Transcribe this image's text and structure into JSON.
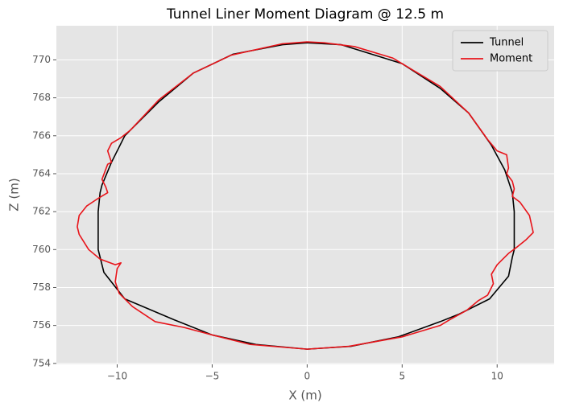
{
  "chart_data": {
    "type": "line",
    "title": "Tunnel Liner Moment Diagram @ 12.5 m",
    "x_label": "X (m)",
    "y_label": "Z (m)",
    "xlim": [
      -13.2,
      13.0
    ],
    "ylim": [
      753.95,
      771.8
    ],
    "xticks": [
      {
        "value": -10,
        "label": "−10"
      },
      {
        "value": -5,
        "label": "−5"
      },
      0,
      5,
      10
    ],
    "yticks": [
      754,
      756,
      758,
      760,
      762,
      764,
      766,
      768,
      770
    ],
    "grid": true,
    "legend": "upper right",
    "series": [
      {
        "name": "Tunnel",
        "color": "#000000",
        "x": [
          0,
          1.8,
          5,
          7,
          8.5,
          9.7,
          10.4,
          10.8,
          10.9,
          10.9,
          10.9,
          10.8,
          10.6,
          9.6,
          8,
          7,
          4.8,
          2.3,
          0,
          -2.7,
          -5,
          -7,
          -9.6,
          -10.7,
          -11,
          -11,
          -11,
          -10.9,
          -10.8,
          -10.3,
          -9.6,
          -9.3,
          -7.8,
          -6,
          -3.9,
          -1.3,
          0
        ],
        "values": [
          770.9,
          770.8,
          769.8,
          768.5,
          767.2,
          765.5,
          764.2,
          763,
          762,
          761,
          760,
          759.6,
          758.6,
          757.4,
          756.6,
          756.2,
          755.4,
          754.9,
          754.75,
          755,
          755.5,
          756.3,
          757.4,
          758.8,
          760,
          761,
          762,
          763,
          763.4,
          764.6,
          766,
          766.3,
          767.8,
          769.3,
          770.3,
          770.8,
          770.9
        ]
      },
      {
        "name": "Moment",
        "color": "#e8141a",
        "x": [
          0,
          0.9,
          2.5,
          4.5,
          5,
          7,
          8.5,
          9.5,
          10,
          10.5,
          10.6,
          10.5,
          10.8,
          10.9,
          10.8,
          11.2,
          11.7,
          11.9,
          11.5,
          11,
          10.6,
          10.2,
          10,
          9.7,
          9.8,
          9.5,
          9,
          8.4,
          7.5,
          7,
          5,
          2.2,
          0,
          -3,
          -5,
          -6.5,
          -8,
          -9.2,
          -9.9,
          -10.1,
          -10,
          -9.8,
          -10.1,
          -10.9,
          -11.5,
          -12,
          -12.1,
          -12,
          -11.6,
          -11,
          -10.5,
          -10.6,
          -10.8,
          -10.5,
          -10.3,
          -10.5,
          -10.3,
          -9.8,
          -9.3,
          -7.8,
          -6,
          -4,
          -1.3,
          0
        ],
        "values": [
          770.95,
          770.9,
          770.7,
          770.1,
          769.8,
          768.6,
          767.2,
          765.8,
          765.2,
          765,
          764.3,
          764,
          763.6,
          763.2,
          762.8,
          762.5,
          761.8,
          760.9,
          760.5,
          760.1,
          759.8,
          759.4,
          759.2,
          758.7,
          758.2,
          757.6,
          757.3,
          756.8,
          756.3,
          756,
          755.4,
          754.9,
          754.75,
          755,
          755.5,
          755.9,
          756.2,
          757,
          757.7,
          758.3,
          759,
          759.3,
          759.2,
          759.5,
          760,
          760.8,
          761.2,
          761.8,
          762.3,
          762.7,
          763,
          763.3,
          763.7,
          764.5,
          764.6,
          765.2,
          765.6,
          765.9,
          766.3,
          767.9,
          769.3,
          770.25,
          770.85,
          770.95
        ]
      }
    ]
  }
}
